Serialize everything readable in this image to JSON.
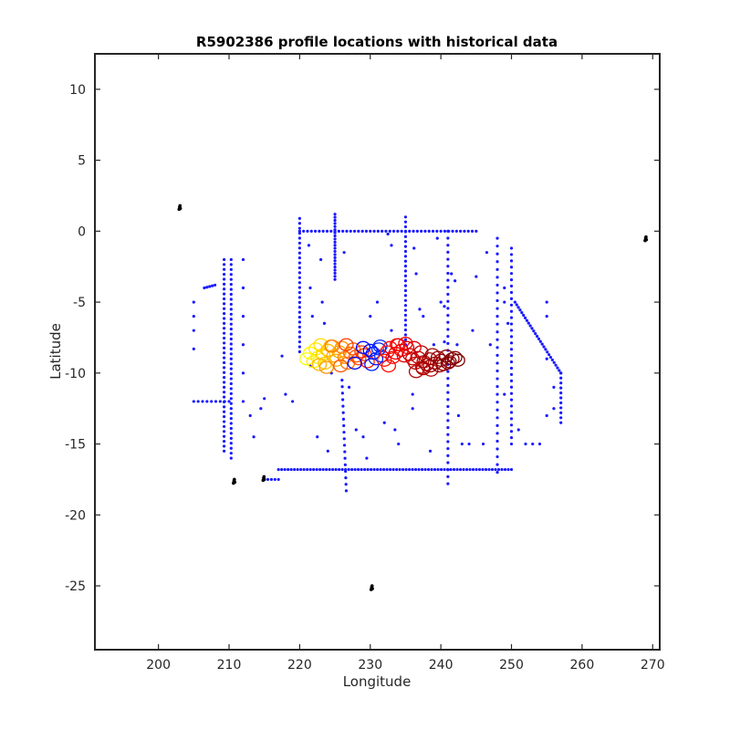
{
  "chart_data": {
    "type": "scatter",
    "title": "R5902386 profile locations with historical data",
    "xlabel": "Longitude",
    "ylabel": "Latitude",
    "xlim": [
      191,
      271
    ],
    "ylim": [
      -29.5,
      12.5
    ],
    "xticks": [
      200,
      210,
      220,
      230,
      240,
      250,
      260,
      270
    ],
    "yticks": [
      10,
      5,
      0,
      -5,
      -10,
      -15,
      -20,
      -25
    ],
    "grid": false,
    "colors": {
      "historical_blue": "#1a1aff",
      "other_black": "#000000",
      "float_colormap": [
        "#ffff00",
        "#ffd400",
        "#00ffff",
        "#ff8000",
        "#ff5500",
        "#ff2200",
        "#0000dd",
        "#dd0000",
        "#aa0000",
        "#800000"
      ]
    },
    "series": [
      {
        "marker": "dot",
        "color": "#1a1aff",
        "lines": [
          {
            "x": [
              220,
              220
            ],
            "y": [
              0.9,
              -8.5
            ],
            "step": 0.35
          },
          {
            "x": [
              225,
              225
            ],
            "y": [
              1.2,
              -3.4
            ],
            "step": 0.22
          },
          {
            "x": [
              235,
              235
            ],
            "y": [
              1.0,
              -8.0
            ],
            "step": 0.35
          },
          {
            "x": [
              209.3,
              209.3
            ],
            "y": [
              -2.0,
              -15.5
            ],
            "step": 0.35
          },
          {
            "x": [
              210.3,
              210.3
            ],
            "y": [
              -2.0,
              -16.0
            ],
            "step": 0.35
          },
          {
            "x": [
              241,
              241
            ],
            "y": [
              0.0,
              -17.8
            ],
            "step": 0.5
          },
          {
            "x": [
              248,
              248
            ],
            "y": [
              -0.5,
              -17.0
            ],
            "step": 0.55
          },
          {
            "x": [
              250,
              250
            ],
            "y": [
              -1.2,
              -15.0
            ],
            "step": 0.45
          },
          {
            "x": [
              226,
              226.6
            ],
            "y": [
              -10.5,
              -18.3
            ],
            "step": 0.45
          },
          {
            "x": [
              217,
              250
            ],
            "y": [
              -16.8,
              -16.8
            ],
            "step": 0.45
          },
          {
            "x": [
              215,
              217
            ],
            "y": [
              -17.5,
              -17.5
            ],
            "step": 0.5
          },
          {
            "x": [
              220,
              245
            ],
            "y": [
              0.0,
              0.0
            ],
            "step": 0.55
          },
          {
            "x": [
              250.5,
              257
            ],
            "y": [
              -5.0,
              -10.0
            ],
            "step": 0.3
          },
          {
            "x": [
              257,
              257
            ],
            "y": [
              -10.0,
              -13.5
            ],
            "step": 0.35
          },
          {
            "x": [
              205,
              210
            ],
            "y": [
              -12.0,
              -12.0
            ],
            "step": 0.6
          },
          {
            "x": [
              206.5,
              208
            ],
            "y": [
              -4.0,
              -3.8
            ],
            "step": 0.4
          }
        ],
        "points": [
          [
            212,
            -2
          ],
          [
            212,
            -4
          ],
          [
            212,
            -6
          ],
          [
            212,
            -8
          ],
          [
            212,
            -10
          ],
          [
            212,
            -12
          ],
          [
            205,
            -5
          ],
          [
            205,
            -6
          ],
          [
            205,
            -7
          ],
          [
            205,
            -8.3
          ],
          [
            213,
            -13
          ],
          [
            214.5,
            -12.5
          ],
          [
            213.5,
            -14.5
          ],
          [
            218,
            -11.5
          ],
          [
            219,
            -12
          ],
          [
            221.5,
            -9.5
          ],
          [
            222.5,
            -14.5
          ],
          [
            224,
            -15.5
          ],
          [
            224.5,
            -10
          ],
          [
            227,
            -11
          ],
          [
            228,
            -14
          ],
          [
            229,
            -14.5
          ],
          [
            229.5,
            -16
          ],
          [
            230,
            -6
          ],
          [
            232,
            -13.5
          ],
          [
            233,
            -7
          ],
          [
            233.5,
            -14
          ],
          [
            234,
            -15
          ],
          [
            236,
            -11.5
          ],
          [
            236,
            -12.5
          ],
          [
            237,
            -5.5
          ],
          [
            237.5,
            -6
          ],
          [
            238.5,
            -15.5
          ],
          [
            239,
            -8
          ],
          [
            239.5,
            -0.5
          ],
          [
            240,
            -5
          ],
          [
            240.5,
            -5.3
          ],
          [
            241.5,
            -3
          ],
          [
            242.5,
            -13
          ],
          [
            243,
            -15
          ],
          [
            244,
            -15
          ],
          [
            245,
            -3.2
          ],
          [
            244.5,
            -7
          ],
          [
            246,
            -15
          ],
          [
            247,
            -8
          ],
          [
            249,
            -4
          ],
          [
            249,
            -5
          ],
          [
            249.5,
            -6.5
          ],
          [
            249,
            -11.5
          ],
          [
            251,
            -14
          ],
          [
            252,
            -15
          ],
          [
            253,
            -15
          ],
          [
            254,
            -15
          ],
          [
            255,
            -5
          ],
          [
            255,
            -6
          ],
          [
            255,
            -9
          ],
          [
            255,
            -13
          ],
          [
            256,
            -11
          ],
          [
            256,
            -12.5
          ],
          [
            221.3,
            -1
          ],
          [
            221.5,
            -4
          ],
          [
            221.8,
            -6
          ],
          [
            223,
            -2
          ],
          [
            223.2,
            -5
          ],
          [
            223.5,
            -6.5
          ],
          [
            232.5,
            -0.2
          ],
          [
            233,
            -1
          ],
          [
            236.2,
            -1.2
          ],
          [
            236.5,
            -3
          ],
          [
            242,
            -3.5
          ],
          [
            240.5,
            -7.8
          ],
          [
            242.3,
            -8
          ],
          [
            215,
            -11.8
          ],
          [
            217.5,
            -8.8
          ],
          [
            226.3,
            -1.5
          ],
          [
            231,
            -5
          ],
          [
            246.5,
            -1.5
          ]
        ]
      },
      {
        "marker": "blob",
        "color": "#000000",
        "points": [
          [
            203,
            1.7
          ],
          [
            269,
            -0.5
          ],
          [
            210.7,
            -17.6
          ],
          [
            214.9,
            -17.4
          ],
          [
            230.2,
            -25.1
          ]
        ]
      },
      {
        "marker": "open-circle",
        "colormap": "jet",
        "x": [
          221,
          221.5,
          222,
          222.3,
          222.6,
          223,
          223.3,
          223.6,
          224,
          224.4,
          224.8,
          225.2,
          225.6,
          226,
          226.4,
          226.8,
          227.2,
          227.6,
          228,
          228.4,
          228.8,
          229.2,
          229.6,
          230,
          230.4,
          230.8,
          231.2,
          231.6,
          232,
          232.4,
          232.8,
          233.2,
          233.6,
          234,
          234.4,
          234.8,
          235.2,
          235.6,
          236,
          236.4,
          236.8,
          237.2,
          237.6,
          238,
          238.4,
          238.8,
          239.2,
          239.6,
          240,
          240.4,
          240.8,
          241.2,
          241.6,
          242,
          242.4,
          222.8,
          223.8,
          224.6,
          225.8,
          226.6,
          227.8,
          229,
          230.2,
          231.4,
          232.6,
          233.8,
          235,
          236.2,
          237.4,
          238.6,
          239.8,
          241,
          236.5,
          237.5,
          238.5
        ],
        "y": [
          -9.0,
          -8.6,
          -9.2,
          -8.3,
          -8.9,
          -8.0,
          -8.7,
          -9.3,
          -8.4,
          -8.1,
          -8.8,
          -9.1,
          -8.5,
          -8.2,
          -8.9,
          -9.3,
          -8.6,
          -8.3,
          -8.8,
          -9.0,
          -8.5,
          -8.7,
          -9.2,
          -8.4,
          -8.6,
          -9.0,
          -8.3,
          -8.8,
          -9.1,
          -8.5,
          -8.2,
          -8.9,
          -8.6,
          -8.0,
          -8.4,
          -8.8,
          -8.2,
          -8.7,
          -9.0,
          -9.3,
          -8.9,
          -8.5,
          -9.2,
          -9.4,
          -9.0,
          -8.7,
          -9.3,
          -8.9,
          -9.1,
          -9.4,
          -8.8,
          -9.2,
          -9.0,
          -8.9,
          -9.1,
          -9.4,
          -9.6,
          -8.1,
          -9.5,
          -8.0,
          -9.3,
          -8.2,
          -9.4,
          -8.1,
          -9.5,
          -8.0,
          -7.9,
          -8.2,
          -9.6,
          -9.8,
          -9.5,
          -9.3,
          -9.9,
          -9.7,
          -9.5
        ],
        "t": [
          0.0,
          0.02,
          0.03,
          0.05,
          0.06,
          0.08,
          0.1,
          0.12,
          0.14,
          0.16,
          0.18,
          0.2,
          0.22,
          0.25,
          0.28,
          0.3,
          0.32,
          0.34,
          0.36,
          0.38,
          0.4,
          0.42,
          0.44,
          0.5,
          0.52,
          0.55,
          0.58,
          0.6,
          0.62,
          0.64,
          0.66,
          0.7,
          0.72,
          0.75,
          0.76,
          0.77,
          0.78,
          0.8,
          0.82,
          0.84,
          0.85,
          0.86,
          0.88,
          0.9,
          0.91,
          0.92,
          0.93,
          0.94,
          0.95,
          0.96,
          0.97,
          0.98,
          0.99,
          0.995,
          1.0,
          0.2,
          0.25,
          0.3,
          0.35,
          0.4,
          0.45,
          0.5,
          0.55,
          0.6,
          0.65,
          0.72,
          0.74,
          0.78,
          0.83,
          0.87,
          0.92,
          0.97,
          0.86,
          0.89,
          0.93
        ]
      }
    ]
  }
}
